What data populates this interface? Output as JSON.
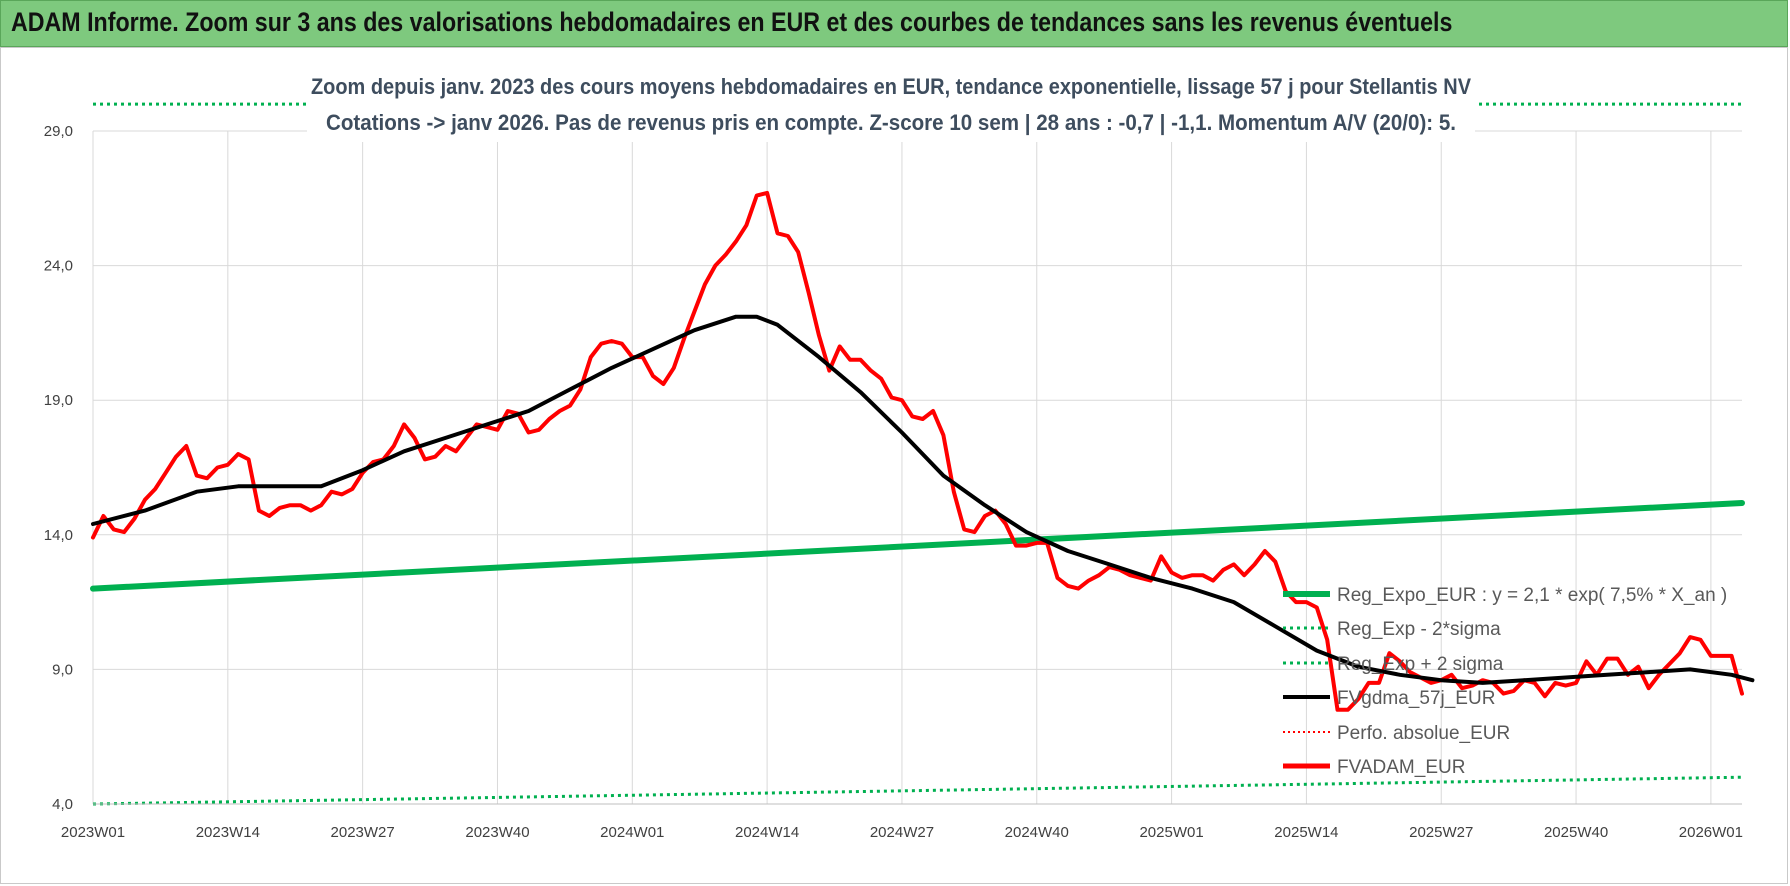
{
  "header": {
    "title": "ADAM Informe. Zoom sur 3 ans des valorisations hebdomadaires en EUR et des courbes de tendances sans les revenus éventuels"
  },
  "colors": {
    "banner": "#7ec97e",
    "trend": "#00b050",
    "price": "#ff0000",
    "ma": "#000000",
    "grid": "#d9d9d9"
  },
  "chart_data": {
    "type": "line",
    "subtitle_line1": "Zoom depuis janv. 2023 des cours moyens hebdomadaires en EUR, tendance exponentielle, lissage 57 j pour Stellantis NV",
    "subtitle_line2": "Cotations -> janv 2026. Pas de revenus pris en compte. Z-score 10 sem | 28 ans : -0,7 | -1,1. Momentum A/V (20/0): 5.",
    "ylim": [
      4,
      29
    ],
    "yticks": [
      4,
      9,
      14,
      19,
      24,
      29
    ],
    "ytick_labels": [
      "4,0",
      "9,0",
      "14,0",
      "19,0",
      "24,0",
      "29,0"
    ],
    "x_count": 160,
    "xticks": [
      0,
      13,
      26,
      39,
      52,
      65,
      78,
      91,
      104,
      117,
      130,
      143,
      156
    ],
    "xtick_labels": [
      "2023W01",
      "2023W14",
      "2023W27",
      "2023W40",
      "2024W01",
      "2024W14",
      "2024W27",
      "2024W40",
      "2025W01",
      "2025W14",
      "2025W27",
      "2025W40",
      "2026W01"
    ],
    "legend": [
      "Reg_Expo_EUR : y = 2,1 * exp( 7,5% *  X_an )",
      "Reg_Exp - 2*sigma",
      "Reg_Exp + 2 sigma",
      "FVgdma_57j_EUR",
      "Perfo. absolue_EUR",
      "FVADAM_EUR"
    ],
    "series": [
      {
        "name": "Reg_Expo_EUR",
        "kind": "linear",
        "x": [
          0,
          160
        ],
        "y": [
          12.0,
          15.2
        ]
      },
      {
        "name": "Reg_Exp - 2*sigma",
        "kind": "linear",
        "x": [
          0,
          160
        ],
        "y": [
          4.0,
          5.0
        ]
      },
      {
        "name": "Reg_Exp + 2 sigma",
        "kind": "linear",
        "x": [
          0,
          160
        ],
        "y": [
          30.0,
          30.0
        ]
      },
      {
        "name": "FVgdma_57j_EUR",
        "x": [
          0,
          5,
          10,
          14,
          18,
          22,
          26,
          30,
          34,
          38,
          42,
          46,
          50,
          54,
          58,
          62,
          64,
          66,
          70,
          74,
          78,
          82,
          86,
          90,
          94,
          98,
          102,
          106,
          110,
          114,
          118,
          122,
          126,
          130,
          134,
          138,
          142,
          146,
          150,
          154,
          158,
          160
        ],
        "y": [
          14.4,
          14.9,
          15.6,
          15.8,
          15.8,
          15.8,
          16.4,
          17.1,
          17.6,
          18.1,
          18.6,
          19.4,
          20.2,
          20.9,
          21.6,
          22.1,
          22.1,
          21.8,
          20.6,
          19.3,
          17.8,
          16.2,
          15.1,
          14.1,
          13.4,
          12.9,
          12.4,
          12.0,
          11.5,
          10.6,
          9.7,
          9.1,
          8.8,
          8.6,
          8.5,
          8.6,
          8.7,
          8.8,
          8.9,
          9.0,
          8.8,
          8.6
        ]
      },
      {
        "name": "FVADAM_EUR",
        "x": [
          0,
          1,
          2,
          3,
          4,
          5,
          6,
          7,
          8,
          9,
          10,
          11,
          12,
          13,
          14,
          15,
          16,
          17,
          18,
          19,
          20,
          21,
          22,
          23,
          24,
          25,
          26,
          27,
          28,
          29,
          30,
          31,
          32,
          33,
          34,
          35,
          36,
          37,
          38,
          39,
          40,
          41,
          42,
          43,
          44,
          45,
          46,
          47,
          48,
          49,
          50,
          51,
          52,
          53,
          54,
          55,
          56,
          57,
          58,
          59,
          60,
          61,
          62,
          63,
          64,
          65,
          66,
          67,
          68,
          69,
          70,
          71,
          72,
          73,
          74,
          75,
          76,
          77,
          78,
          79,
          80,
          81,
          82,
          83,
          84,
          85,
          86,
          87,
          88,
          89,
          90,
          91,
          92,
          93,
          94,
          95,
          96,
          97,
          98,
          99,
          100,
          101,
          102,
          103,
          104,
          105,
          106,
          107,
          108,
          109,
          110,
          111,
          112,
          113,
          114,
          115,
          116,
          117,
          118,
          119,
          120,
          121,
          122,
          123,
          124,
          125,
          126,
          127,
          128,
          129,
          130,
          131,
          132,
          133,
          134,
          135,
          136,
          137,
          138,
          139,
          140,
          141,
          142,
          143,
          144,
          145,
          146,
          147,
          148,
          149,
          150,
          151,
          152,
          153,
          154,
          155,
          156,
          157,
          158,
          159
        ],
        "y": [
          13.9,
          14.7,
          14.2,
          14.1,
          14.6,
          15.3,
          15.7,
          16.3,
          16.9,
          17.3,
          16.2,
          16.1,
          16.5,
          16.6,
          17.0,
          16.8,
          14.9,
          14.7,
          15.0,
          15.1,
          15.1,
          14.9,
          15.1,
          15.6,
          15.5,
          15.7,
          16.3,
          16.7,
          16.8,
          17.3,
          18.1,
          17.6,
          16.8,
          16.9,
          17.3,
          17.1,
          17.6,
          18.1,
          18.0,
          17.9,
          18.6,
          18.5,
          17.8,
          17.9,
          18.3,
          18.6,
          18.8,
          19.4,
          20.6,
          21.1,
          21.2,
          21.1,
          20.6,
          20.6,
          19.9,
          19.6,
          20.2,
          21.3,
          22.3,
          23.3,
          24.0,
          24.4,
          24.9,
          25.5,
          26.6,
          26.7,
          25.2,
          25.1,
          24.5,
          23.0,
          21.4,
          20.1,
          21.0,
          20.5,
          20.5,
          20.1,
          19.8,
          19.1,
          19.0,
          18.4,
          18.3,
          18.6,
          17.7,
          15.6,
          14.2,
          14.1,
          14.7,
          14.9,
          14.4,
          13.6,
          13.6,
          13.7,
          13.7,
          12.4,
          12.1,
          12.0,
          12.3,
          12.5,
          12.8,
          12.7,
          12.5,
          12.4,
          12.3,
          13.2,
          12.6,
          12.4,
          12.5,
          12.5,
          12.3,
          12.7,
          12.9,
          12.5,
          12.9,
          13.4,
          13.0,
          11.9,
          11.5,
          11.5,
          11.3,
          10.1,
          7.5,
          7.5,
          7.9,
          8.5,
          8.5,
          9.6,
          9.3,
          8.9,
          8.7,
          8.5,
          8.6,
          8.8,
          8.3,
          8.4,
          8.6,
          8.5,
          8.1,
          8.2,
          8.6,
          8.5,
          8.0,
          8.5,
          8.4,
          8.5,
          9.3,
          8.8,
          9.4,
          9.4,
          8.8,
          9.1,
          8.3,
          8.8,
          9.2,
          9.6,
          10.2,
          10.1,
          9.5,
          9.5,
          9.5,
          8.1
        ]
      }
    ]
  }
}
